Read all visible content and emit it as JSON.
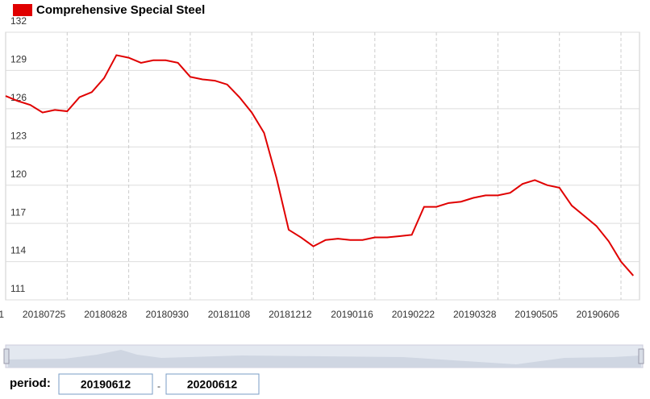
{
  "chart_data": {
    "type": "line",
    "categories": [
      "1",
      null,
      null,
      null,
      null,
      "20180725",
      null,
      null,
      null,
      null,
      "20180828",
      null,
      null,
      null,
      null,
      "20180930",
      null,
      null,
      null,
      null,
      "20181108",
      null,
      null,
      null,
      null,
      "20181212",
      null,
      null,
      null,
      null,
      "20190116",
      null,
      null,
      null,
      null,
      "20190222",
      null,
      null,
      null,
      null,
      "20190328",
      null,
      null,
      null,
      null,
      "20190505",
      null,
      null,
      null,
      null,
      "20190606",
      null
    ],
    "series": [
      {
        "name": "Comprehensive Special Steel",
        "color": "#e00000",
        "values": [
          127.0,
          126.6,
          126.3,
          125.7,
          125.9,
          125.8,
          126.9,
          127.3,
          128.4,
          130.2,
          130.0,
          129.6,
          129.8,
          129.8,
          129.6,
          128.5,
          128.3,
          128.2,
          127.9,
          126.9,
          125.7,
          124.1,
          120.6,
          116.5,
          115.9,
          115.2,
          115.7,
          115.8,
          115.7,
          115.7,
          115.9,
          115.9,
          116.0,
          116.1,
          118.3,
          118.3,
          118.6,
          118.7,
          119.0,
          119.2,
          119.2,
          119.4,
          120.1,
          120.4,
          120.0,
          119.8,
          118.4,
          117.6,
          116.8,
          115.6,
          114.0,
          112.9
        ]
      }
    ],
    "ylim": [
      111,
      132
    ],
    "yticks": [
      111,
      114,
      117,
      120,
      123,
      126,
      129,
      132
    ],
    "grid": true
  },
  "controls": {
    "period_label": "period:",
    "start": "20190612",
    "separator": "-",
    "end": "20200612"
  }
}
